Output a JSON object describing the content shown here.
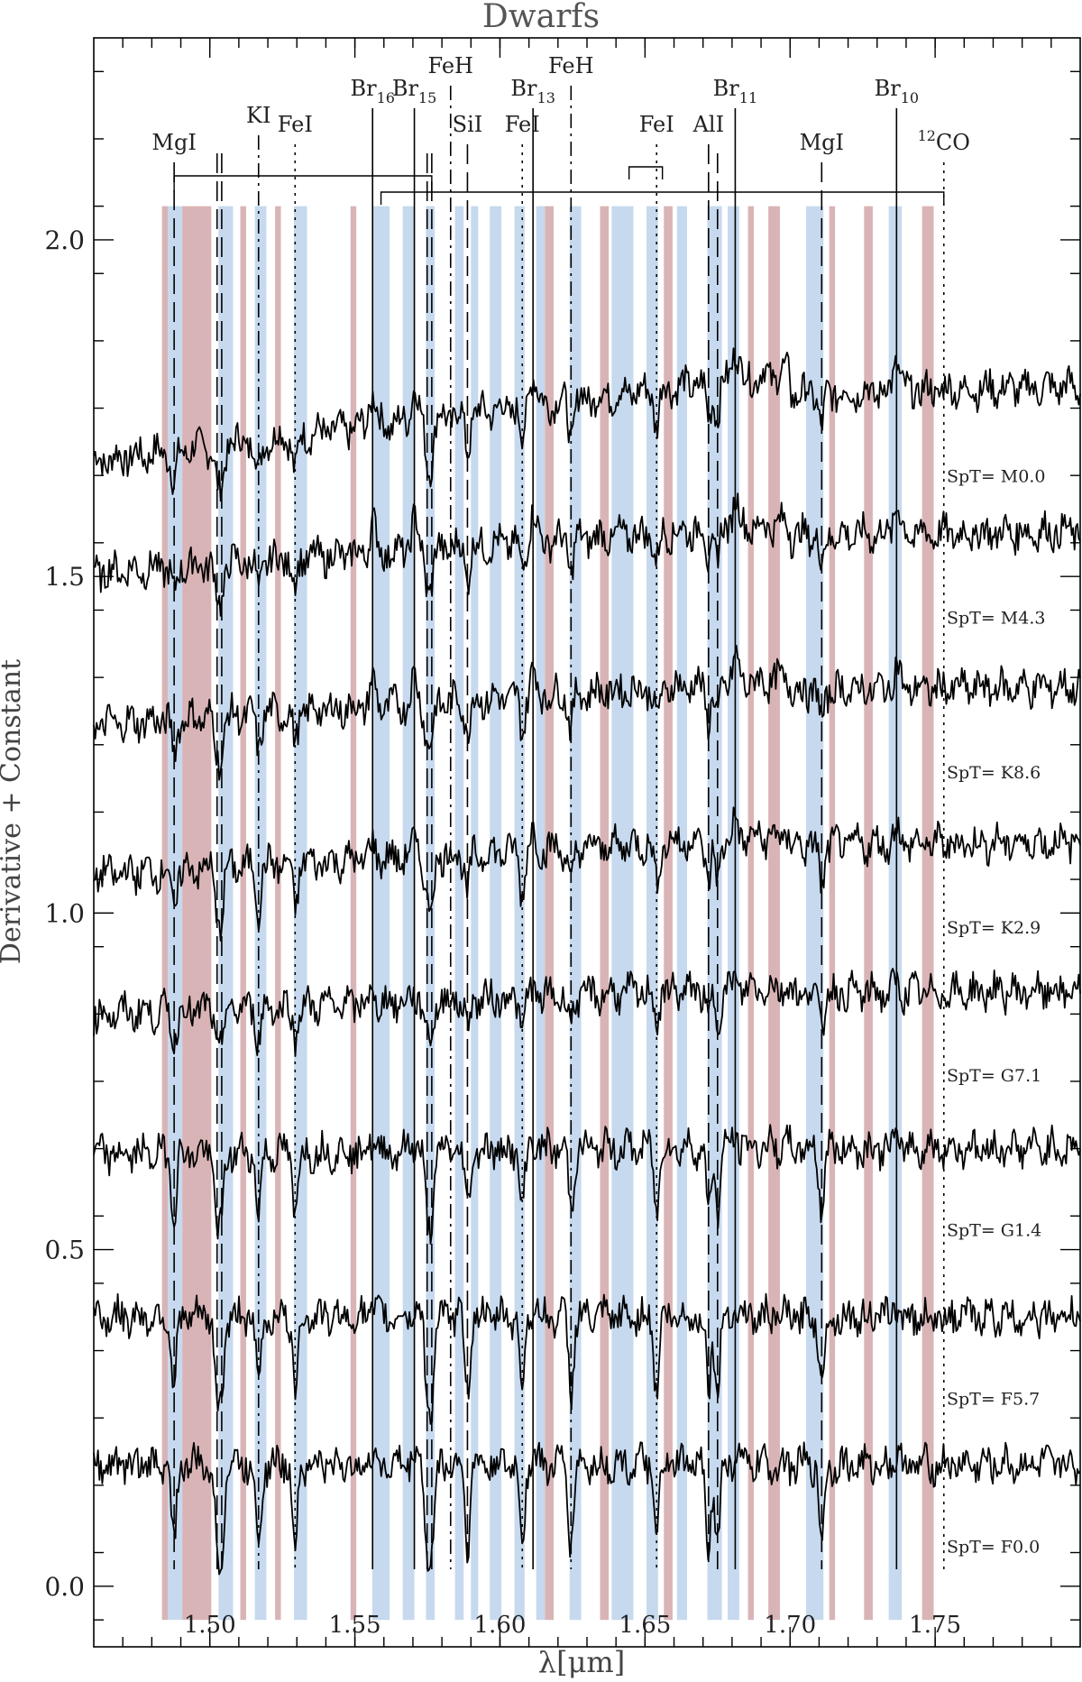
{
  "chart_data": {
    "type": "line",
    "title": "Dwarfs",
    "xlabel": "λ[μm]",
    "ylabel": "Derivative + Constant",
    "xlim": [
      1.46,
      1.8
    ],
    "ylim": [
      -0.09,
      2.3
    ],
    "x_ticks": [
      1.5,
      1.55,
      1.6,
      1.65,
      1.7,
      1.75
    ],
    "x_tick_labels": [
      "1.50",
      "1.55",
      "1.60",
      "1.65",
      "1.70",
      "1.75"
    ],
    "y_ticks": [
      0.0,
      0.5,
      1.0,
      1.5,
      2.0
    ],
    "y_tick_labels": [
      "0.0",
      "0.5",
      "1.0",
      "1.5",
      "2.0"
    ],
    "grid": false,
    "colors": {
      "blue_band": "#c6d9ee",
      "red_band": "#d9b4b6",
      "spectrum": "#000000"
    },
    "band_y_range": [
      -0.05,
      2.05
    ],
    "blue_bands": [
      [
        1.4855,
        1.4905
      ],
      [
        1.503,
        1.508
      ],
      [
        1.5155,
        1.5195
      ],
      [
        1.529,
        1.5335
      ],
      [
        1.556,
        1.562
      ],
      [
        1.5665,
        1.5705
      ],
      [
        1.5745,
        1.5775
      ],
      [
        1.5845,
        1.5875
      ],
      [
        1.59,
        1.5925
      ],
      [
        1.5965,
        1.6005
      ],
      [
        1.605,
        1.6085
      ],
      [
        1.6125,
        1.6155
      ],
      [
        1.624,
        1.628
      ],
      [
        1.6385,
        1.646
      ],
      [
        1.6505,
        1.6545
      ],
      [
        1.661,
        1.6645
      ],
      [
        1.6715,
        1.6765
      ],
      [
        1.6785,
        1.6825
      ],
      [
        1.7055,
        1.7115
      ],
      [
        1.734,
        1.7385
      ]
    ],
    "red_bands": [
      [
        1.4835,
        1.4855
      ],
      [
        1.4905,
        1.5005
      ],
      [
        1.5105,
        1.5125
      ],
      [
        1.5225,
        1.5245
      ],
      [
        1.5485,
        1.5505
      ],
      [
        1.6155,
        1.6185
      ],
      [
        1.6345,
        1.6375
      ],
      [
        1.6565,
        1.6595
      ],
      [
        1.6855,
        1.6875
      ],
      [
        1.6925,
        1.6965
      ],
      [
        1.7135,
        1.7155
      ],
      [
        1.7255,
        1.7285
      ],
      [
        1.7455,
        1.7495
      ]
    ],
    "series": [
      {
        "name": "SpT= M0.0",
        "offset": 1.77,
        "slope": 0.55,
        "absorption": 0.6,
        "emission": 1.0
      },
      {
        "name": "SpT= M4.3",
        "offset": 1.56,
        "slope": 0.3,
        "absorption": 0.5,
        "emission": 0.9
      },
      {
        "name": "SpT= K8.6",
        "offset": 1.33,
        "slope": 0.28,
        "absorption": 0.55,
        "emission": 0.7
      },
      {
        "name": "SpT= K2.9",
        "offset": 1.1,
        "slope": 0.24,
        "absorption": 0.7,
        "emission": 0.45
      },
      {
        "name": "SpT= G7.1",
        "offset": 0.88,
        "slope": 0.17,
        "absorption": 0.5,
        "emission": 0.2
      },
      {
        "name": "SpT= G1.4",
        "offset": 0.65,
        "slope": 0.05,
        "absorption": 1.0,
        "emission": 0.3
      },
      {
        "name": "SpT= F5.7",
        "offset": 0.4,
        "slope": 0.0,
        "absorption": 1.2,
        "emission": 0.3
      },
      {
        "name": "SpT= F0.0",
        "offset": 0.18,
        "slope": 0.0,
        "absorption": 1.3,
        "emission": 0.3
      }
    ],
    "line_markers": [
      {
        "label": "MgI",
        "sub": "",
        "sup": "",
        "x": 1.4877,
        "style": "dash"
      },
      {
        "label": "",
        "sub": "",
        "sup": "",
        "x": 1.5025,
        "style": "dash"
      },
      {
        "label": "",
        "sub": "",
        "sup": "",
        "x": 1.5041,
        "style": "dash"
      },
      {
        "label": "KI",
        "sub": "",
        "sup": "",
        "x": 1.5168,
        "style": "dashdot"
      },
      {
        "label": "FeI",
        "sub": "",
        "sup": "",
        "x": 1.5294,
        "style": "dot"
      },
      {
        "label": "Br",
        "sub": "16",
        "sup": "",
        "x": 1.5561,
        "style": "solid"
      },
      {
        "label": "Br",
        "sub": "15",
        "sup": "",
        "x": 1.5705,
        "style": "solid"
      },
      {
        "label": "",
        "sub": "",
        "sup": "",
        "x": 1.5749,
        "style": "dash"
      },
      {
        "label": "",
        "sub": "",
        "sup": "",
        "x": 1.5765,
        "style": "dash"
      },
      {
        "label": "FeH",
        "sub": "",
        "sup": "",
        "x": 1.583,
        "style": "dashdot"
      },
      {
        "label": "SiI",
        "sub": "",
        "sup": "",
        "x": 1.5888,
        "style": "dash"
      },
      {
        "label": "FeI",
        "sub": "",
        "sup": "",
        "x": 1.6077,
        "style": "dot"
      },
      {
        "label": "Br",
        "sub": "13",
        "sup": "",
        "x": 1.6114,
        "style": "solid"
      },
      {
        "label": "FeH",
        "sub": "",
        "sup": "",
        "x": 1.6245,
        "style": "dashdot"
      },
      {
        "label": "FeI",
        "sub": "",
        "sup": "",
        "x": 1.654,
        "style": "dot"
      },
      {
        "label": "AlI",
        "sub": "",
        "sup": "",
        "x": 1.6719,
        "style": "dash"
      },
      {
        "label": "",
        "sub": "",
        "sup": "",
        "x": 1.675,
        "style": "dash"
      },
      {
        "label": "Br",
        "sub": "11",
        "sup": "",
        "x": 1.6811,
        "style": "solid"
      },
      {
        "label": "MgI",
        "sub": "",
        "sup": "",
        "x": 1.7109,
        "style": "dash"
      },
      {
        "label": "Br",
        "sub": "10",
        "sup": "",
        "x": 1.7367,
        "style": "solid"
      },
      {
        "label": "CO",
        "sub": "",
        "sup": "12",
        "x": 1.753,
        "style": "dot"
      }
    ]
  }
}
